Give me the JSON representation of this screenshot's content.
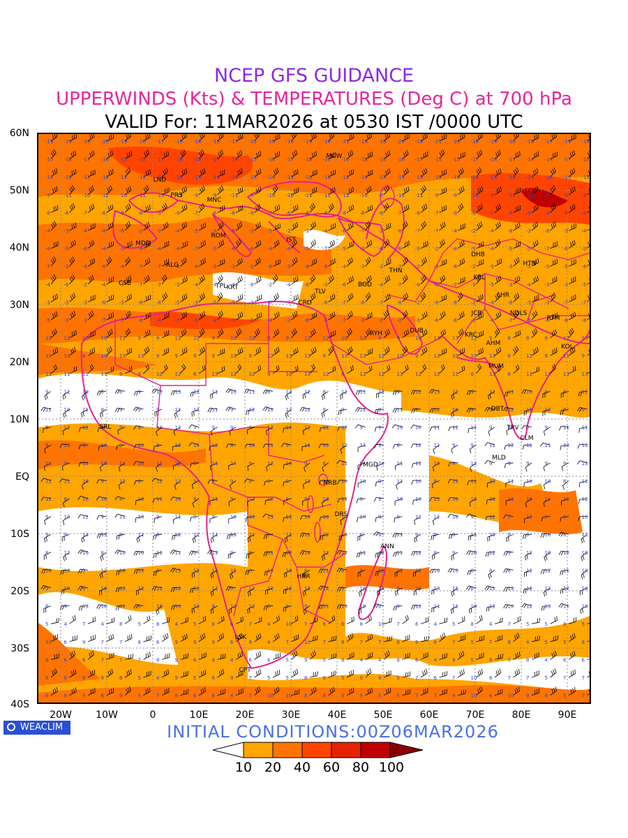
{
  "title": {
    "line1": "NCEP GFS GUIDANCE",
    "line2": "UPPERWINDS (Kts) & TEMPERATURES (Deg C) at 700 hPa",
    "line3": "VALID For: 11MAR2026 at 0530 IST /0000 UTC"
  },
  "initial_conditions": "INITIAL CONDITIONS:00Z06MAR2026",
  "logo": "WEACLIM",
  "lat_labels": [
    "60N",
    "50N",
    "40N",
    "30N",
    "20N",
    "10N",
    "EQ",
    "10S",
    "20S",
    "30S",
    "40S"
  ],
  "lon_labels": [
    "20W",
    "10W",
    "0",
    "10E",
    "20E",
    "30E",
    "40E",
    "50E",
    "60E",
    "70E",
    "80E",
    "90E"
  ],
  "colorbar": {
    "ticks": [
      "10",
      "20",
      "40",
      "60",
      "80",
      "100"
    ],
    "colors": [
      "#ffa500",
      "#ff7400",
      "#ff4400",
      "#e52200",
      "#c00000",
      "#8b0000"
    ]
  },
  "stations": {
    "mcw": "MCW",
    "lnd": "LND",
    "prs": "PRS",
    "mnc": "MNC",
    "rom": "ROM",
    "ist": "IST",
    "mdd": "MDD",
    "alg": "ALG",
    "csb": "CSB",
    "tpl": "TPL",
    "krt": "KRT",
    "tlv": "TLV",
    "cro": "CRO",
    "bgd": "BGD",
    "thn": "THN",
    "dhb": "DHB",
    "htn": "HTN",
    "kbl": "KBL",
    "lhr": "LHR",
    "jcb": "JCB",
    "ndls": "NDLS",
    "rtm": "RTM",
    "ryh": "RYH",
    "dub": "DUB",
    "krc": "KRC",
    "ahm": "AHM",
    "kol": "KOL",
    "mum": "MUM",
    "dbt": "DBT",
    "trv": "TRV",
    "clm": "CLM",
    "mld": "MLD",
    "srl": "SRL",
    "mgd": "MGD",
    "nrb": "NRB",
    "drs": "DRS",
    "ann": "ANN",
    "hrr": "HRR",
    "lsk": "LSK",
    "cpt": "CPT"
  }
}
